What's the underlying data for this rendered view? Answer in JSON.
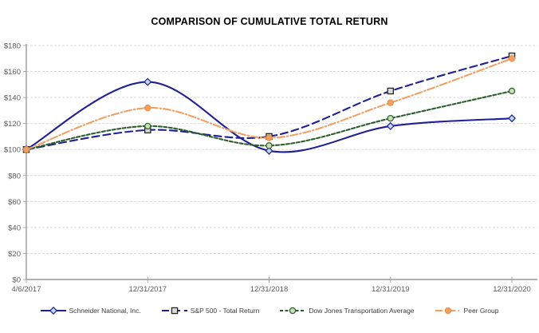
{
  "chart_data": {
    "type": "line",
    "title": "COMPARISON OF CUMULATIVE TOTAL RETURN",
    "x": [
      "4/6/2017",
      "12/31/2017",
      "12/31/2018",
      "12/31/2019",
      "12/31/2020"
    ],
    "xlabel": "",
    "ylabel": "",
    "ylim": [
      0,
      180
    ],
    "y_tick_step": 20,
    "y_tick_prefix": "$",
    "y_ticks": [
      "$0",
      "$20",
      "$40",
      "$60",
      "$80",
      "$100",
      "$120",
      "$140",
      "$160",
      "$180"
    ],
    "grid": "horizontal-dashed",
    "legend_position": "bottom",
    "axis_color": "#A6A6A6",
    "grid_color": "#D9D9D9",
    "tick_label_color": "#595959",
    "series": [
      {
        "name": "Schneider National, Inc.",
        "values": [
          100,
          152,
          99,
          118,
          124
        ],
        "color": "#1F1F96",
        "line_style": "solid",
        "marker": "diamond",
        "marker_fill": "#BDD7EE",
        "marker_stroke": "#1F1F96"
      },
      {
        "name": "S&P 500 - Total Return",
        "values": [
          100,
          115,
          110,
          145,
          172
        ],
        "color": "#1F1F96",
        "line_style": "long-dash",
        "marker": "square",
        "marker_fill": "#D9D9D9",
        "marker_stroke": "#262626"
      },
      {
        "name": "Dow Jones Transportation Average",
        "values": [
          100,
          118,
          103,
          124,
          145
        ],
        "color": "#2D5F2D",
        "line_style": "short-dash",
        "marker": "circle",
        "marker_fill": "#C5E0B4",
        "marker_stroke": "#2D5F2D"
      },
      {
        "name": "Peer Group",
        "values": [
          100,
          132,
          109,
          136,
          170
        ],
        "color": "#F0A064",
        "line_style": "dash-dot",
        "marker": "circle",
        "marker_fill": "#F0A064",
        "marker_stroke": "#E8924E"
      }
    ]
  }
}
